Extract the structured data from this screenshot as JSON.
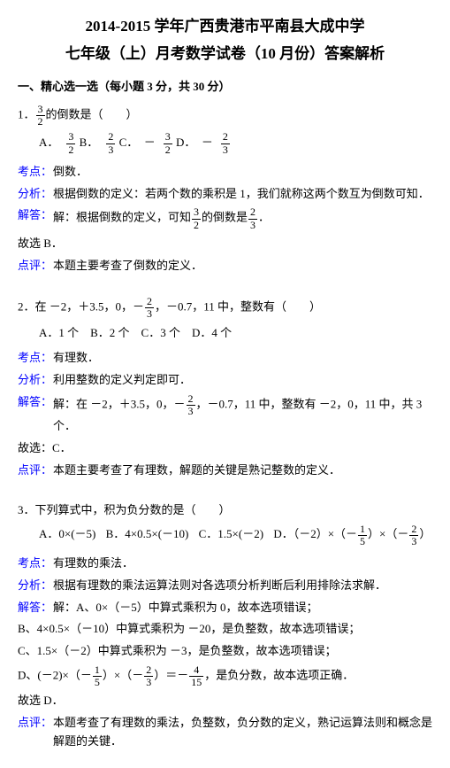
{
  "title_line1": "2014-2015 学年广西贵港市平南县大成中学",
  "title_line2": "七年级（上）月考数学试卷（10 月份）答案解析",
  "section1_header": "一、精心选一选（每小题 3 分，共 30 分）",
  "labels": {
    "kaodian": "考点：",
    "fenxi": "分析：",
    "jieda": "解答：",
    "dianping": "点评："
  },
  "q1": {
    "stem_prefix": "1．",
    "stem_suffix": "的倒数是（　　）",
    "frac_num": "3",
    "frac_den": "2",
    "opt_a_label": "A．",
    "opt_a_num": "3",
    "opt_a_den": "2",
    "opt_b_label": "B．",
    "opt_b_num": "2",
    "opt_b_den": "3",
    "opt_c_label": "C．　－",
    "opt_c_num": "3",
    "opt_c_den": "2",
    "opt_d_label": "D．　－",
    "opt_d_num": "2",
    "opt_d_den": "3",
    "kaodian": "倒数．",
    "fenxi": "根据倒数的定义：若两个数的乘积是 1，我们就称这两个数互为倒数可知．",
    "jieda_prefix": "解：根据倒数的定义，可知",
    "jieda_mid": "的倒数是",
    "jieda_suffix": "．",
    "j_f1_num": "3",
    "j_f1_den": "2",
    "j_f2_num": "2",
    "j_f2_den": "3",
    "conclusion": "故选 B．",
    "dianping": "本题主要考查了倒数的定义．"
  },
  "q2": {
    "stem_prefix": "2．在 －2，＋3.5，0，－",
    "stem_suffix": "，－0.7，11 中，整数有（　　）",
    "frac_num": "2",
    "frac_den": "3",
    "options": "A．1 个　B．2 个　C．3 个　D．4 个",
    "kaodian": "有理数．",
    "fenxi": "利用整数的定义判定即可．",
    "jieda_prefix": "解：在 －2，＋3.5，0，－",
    "jieda_suffix": "，－0.7，11 中，整数有 －2，0，11 中，共 3 个．",
    "j_frac_num": "2",
    "j_frac_den": "3",
    "conclusion": "故选：C．",
    "dianping": "本题主要考查了有理数，解题的关键是熟记整数的定义．"
  },
  "q3": {
    "stem": "3．下列算式中，积为负分数的是（　　）",
    "opt_a": "A．0×(－5)",
    "opt_b": "B．4×0.5×(－10)",
    "opt_c": "C．1.5×(－2)",
    "opt_d_prefix": "D．（－2）×（－",
    "opt_d_mid": "）×（－",
    "opt_d_suffix": "）",
    "d_f1_num": "1",
    "d_f1_den": "5",
    "d_f2_num": "2",
    "d_f2_den": "3",
    "kaodian": "有理数的乘法．",
    "fenxi": "根据有理数的乘法运算法则对各选项分析判断后利用排除法求解．",
    "jieda_a": "解：A、0×（－5）中算式乘积为 0，故本选项错误；",
    "jieda_b": "B、4×0.5×（－10）中算式乘积为 －20，是负整数，故本选项错误；",
    "jieda_c": "C、1.5×（－2）中算式乘积为 －3，是负整数，故本选项错误；",
    "jieda_d_prefix": "D、(－2)×（－",
    "jieda_d_mid1": "）×（－",
    "jieda_d_mid2": "）＝－",
    "jieda_d_suffix": "，是负分数，故本选项正确．",
    "jd_f1_num": "1",
    "jd_f1_den": "5",
    "jd_f2_num": "2",
    "jd_f2_den": "3",
    "jd_f3_num": "4",
    "jd_f3_den": "15",
    "conclusion": "故选 D．",
    "dianping": "本题考查了有理数的乘法，负整数，负分数的定义，熟记运算法则和概念是解题的关键．"
  }
}
